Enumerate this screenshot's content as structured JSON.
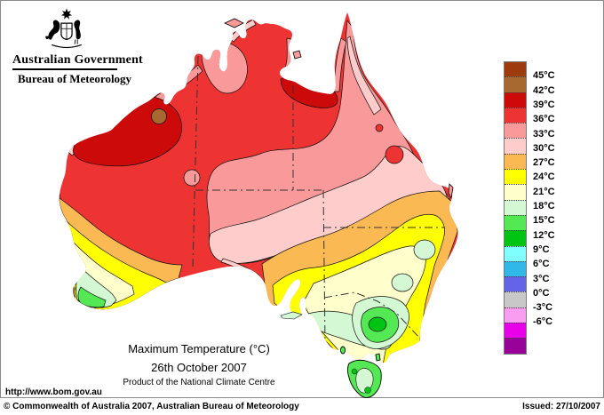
{
  "header": {
    "gov_title": "Australian Government",
    "bureau_title": "Bureau of Meteorology"
  },
  "title_block": {
    "line1": "Maximum Temperature (°C)",
    "line2": "26th October 2007",
    "line3": "Product of the National Climate Centre"
  },
  "url": "http://www.bom.gov.au",
  "footer": {
    "copyright": "© Commonwealth of Australia 2007, Australian Bureau of Meteorology",
    "issued": "Issued: 27/10/2007"
  },
  "legend": {
    "unit": "°C",
    "colors": [
      "#9E3B0E",
      "#A8692F",
      "#CC0A0A",
      "#EE3333",
      "#FA9999",
      "#FFCCCC",
      "#FBB954",
      "#FFFF00",
      "#FFFFCC",
      "#D4F7D4",
      "#55E855",
      "#00C414",
      "#7FFFFF",
      "#2FB8E8",
      "#6464E8",
      "#C8C8C8",
      "#FA9CF0",
      "#E800E8",
      "#980298"
    ],
    "labels": [
      "45°C",
      "42°C",
      "39°C",
      "36°C",
      "33°C",
      "30°C",
      "27°C",
      "24°C",
      "21°C",
      "18°C",
      "15°C",
      "12°C",
      "9°C",
      "6°C",
      "3°C",
      "0°C",
      "-3°C",
      "-6°C"
    ]
  }
}
